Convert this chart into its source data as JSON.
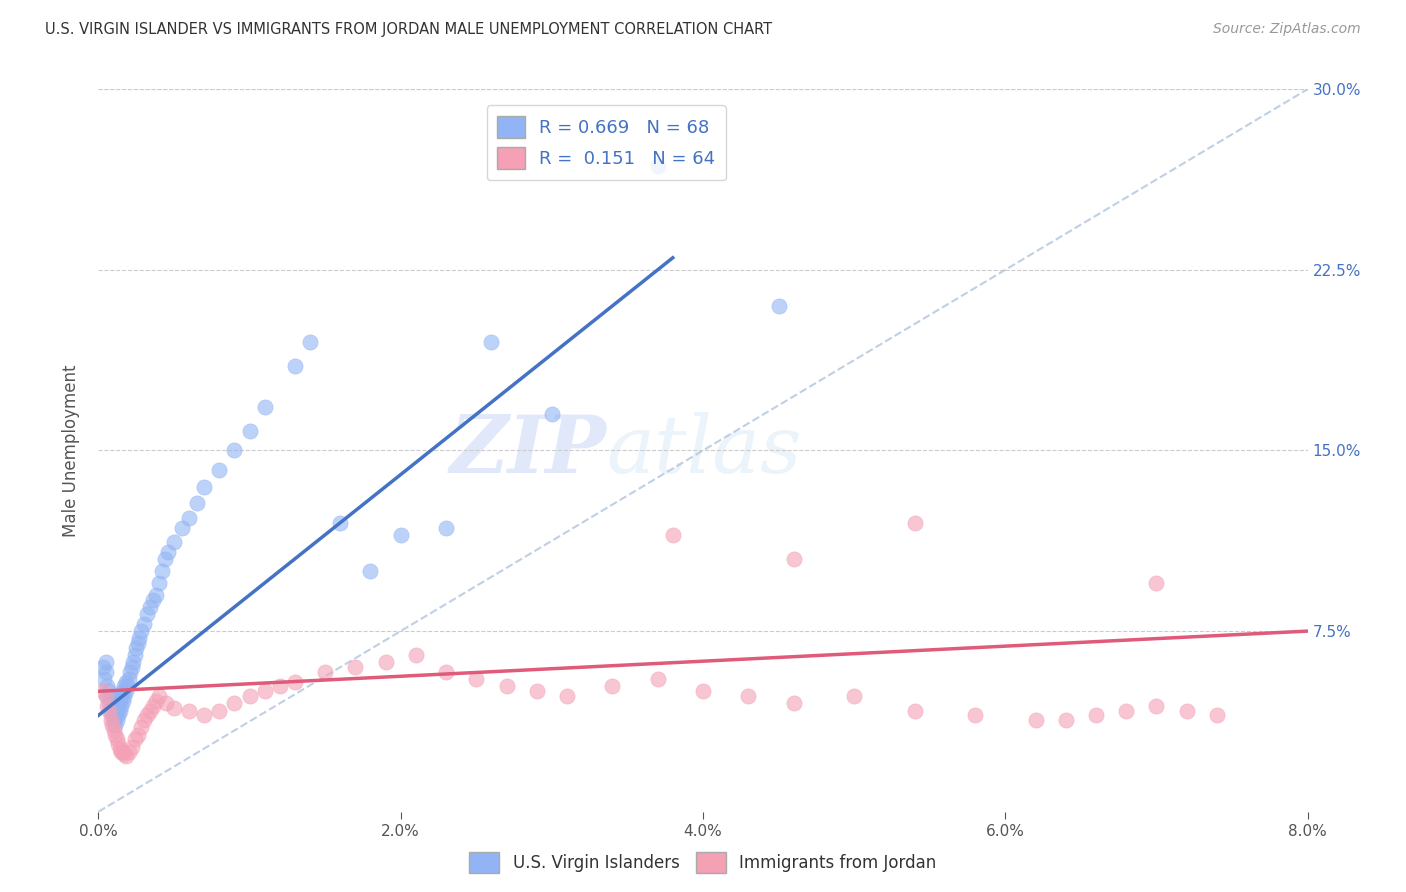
{
  "title": "U.S. VIRGIN ISLANDER VS IMMIGRANTS FROM JORDAN MALE UNEMPLOYMENT CORRELATION CHART",
  "source": "Source: ZipAtlas.com",
  "ylabel": "Male Unemployment",
  "xlim": [
    0,
    0.08
  ],
  "ylim": [
    0,
    0.3
  ],
  "xticks": [
    0.0,
    0.02,
    0.04,
    0.06,
    0.08
  ],
  "yticks_right": [
    0.075,
    0.15,
    0.225,
    0.3
  ],
  "ytick_labels_right": [
    "7.5%",
    "15.0%",
    "22.5%",
    "30.0%"
  ],
  "xtick_labels": [
    "0.0%",
    "2.0%",
    "4.0%",
    "6.0%",
    "8.0%"
  ],
  "blue_color": "#92b4f4",
  "pink_color": "#f4a0b5",
  "blue_line_color": "#4472c4",
  "pink_line_color": "#e05a7a",
  "R_blue": 0.669,
  "N_blue": 68,
  "R_pink": 0.151,
  "N_pink": 64,
  "legend_label_blue": "U.S. Virgin Islanders",
  "legend_label_pink": "Immigrants from Jordan",
  "watermark_zip": "ZIP",
  "watermark_atlas": "atlas",
  "background_color": "#ffffff",
  "blue_scatter_x": [
    0.0003,
    0.0004,
    0.0005,
    0.0005,
    0.0006,
    0.0006,
    0.0007,
    0.0007,
    0.0008,
    0.0008,
    0.0009,
    0.0009,
    0.001,
    0.001,
    0.0011,
    0.0011,
    0.0012,
    0.0012,
    0.0013,
    0.0013,
    0.0014,
    0.0014,
    0.0015,
    0.0015,
    0.0016,
    0.0016,
    0.0017,
    0.0017,
    0.0018,
    0.0018,
    0.0019,
    0.002,
    0.0021,
    0.0022,
    0.0023,
    0.0024,
    0.0025,
    0.0026,
    0.0027,
    0.0028,
    0.003,
    0.0032,
    0.0034,
    0.0036,
    0.0038,
    0.004,
    0.0042,
    0.0044,
    0.0046,
    0.005,
    0.0055,
    0.006,
    0.0065,
    0.007,
    0.008,
    0.009,
    0.01,
    0.011,
    0.013,
    0.014,
    0.016,
    0.018,
    0.02,
    0.023,
    0.026,
    0.03,
    0.037,
    0.045
  ],
  "blue_scatter_y": [
    0.06,
    0.055,
    0.058,
    0.062,
    0.048,
    0.052,
    0.045,
    0.05,
    0.042,
    0.048,
    0.04,
    0.045,
    0.038,
    0.042,
    0.036,
    0.04,
    0.038,
    0.042,
    0.04,
    0.044,
    0.042,
    0.046,
    0.044,
    0.048,
    0.046,
    0.05,
    0.048,
    0.052,
    0.05,
    0.054,
    0.052,
    0.055,
    0.058,
    0.06,
    0.062,
    0.065,
    0.068,
    0.07,
    0.072,
    0.075,
    0.078,
    0.082,
    0.085,
    0.088,
    0.09,
    0.095,
    0.1,
    0.105,
    0.108,
    0.112,
    0.118,
    0.122,
    0.128,
    0.135,
    0.142,
    0.15,
    0.158,
    0.168,
    0.185,
    0.195,
    0.12,
    0.1,
    0.115,
    0.118,
    0.195,
    0.165,
    0.268,
    0.21
  ],
  "pink_scatter_x": [
    0.0003,
    0.0005,
    0.0006,
    0.0007,
    0.0008,
    0.0009,
    0.001,
    0.0011,
    0.0012,
    0.0013,
    0.0014,
    0.0015,
    0.0016,
    0.0017,
    0.0018,
    0.002,
    0.0022,
    0.0024,
    0.0026,
    0.0028,
    0.003,
    0.0032,
    0.0034,
    0.0036,
    0.0038,
    0.004,
    0.0045,
    0.005,
    0.006,
    0.007,
    0.008,
    0.009,
    0.01,
    0.011,
    0.012,
    0.013,
    0.015,
    0.017,
    0.019,
    0.021,
    0.023,
    0.025,
    0.027,
    0.029,
    0.031,
    0.034,
    0.037,
    0.04,
    0.043,
    0.046,
    0.05,
    0.054,
    0.058,
    0.062,
    0.064,
    0.066,
    0.068,
    0.07,
    0.072,
    0.074,
    0.054,
    0.046,
    0.038,
    0.07
  ],
  "pink_scatter_y": [
    0.05,
    0.048,
    0.044,
    0.042,
    0.038,
    0.036,
    0.034,
    0.032,
    0.03,
    0.028,
    0.026,
    0.025,
    0.025,
    0.024,
    0.023,
    0.025,
    0.027,
    0.03,
    0.032,
    0.035,
    0.038,
    0.04,
    0.042,
    0.044,
    0.046,
    0.048,
    0.045,
    0.043,
    0.042,
    0.04,
    0.042,
    0.045,
    0.048,
    0.05,
    0.052,
    0.054,
    0.058,
    0.06,
    0.062,
    0.065,
    0.058,
    0.055,
    0.052,
    0.05,
    0.048,
    0.052,
    0.055,
    0.05,
    0.048,
    0.045,
    0.048,
    0.042,
    0.04,
    0.038,
    0.038,
    0.04,
    0.042,
    0.044,
    0.042,
    0.04,
    0.12,
    0.105,
    0.115,
    0.095
  ]
}
